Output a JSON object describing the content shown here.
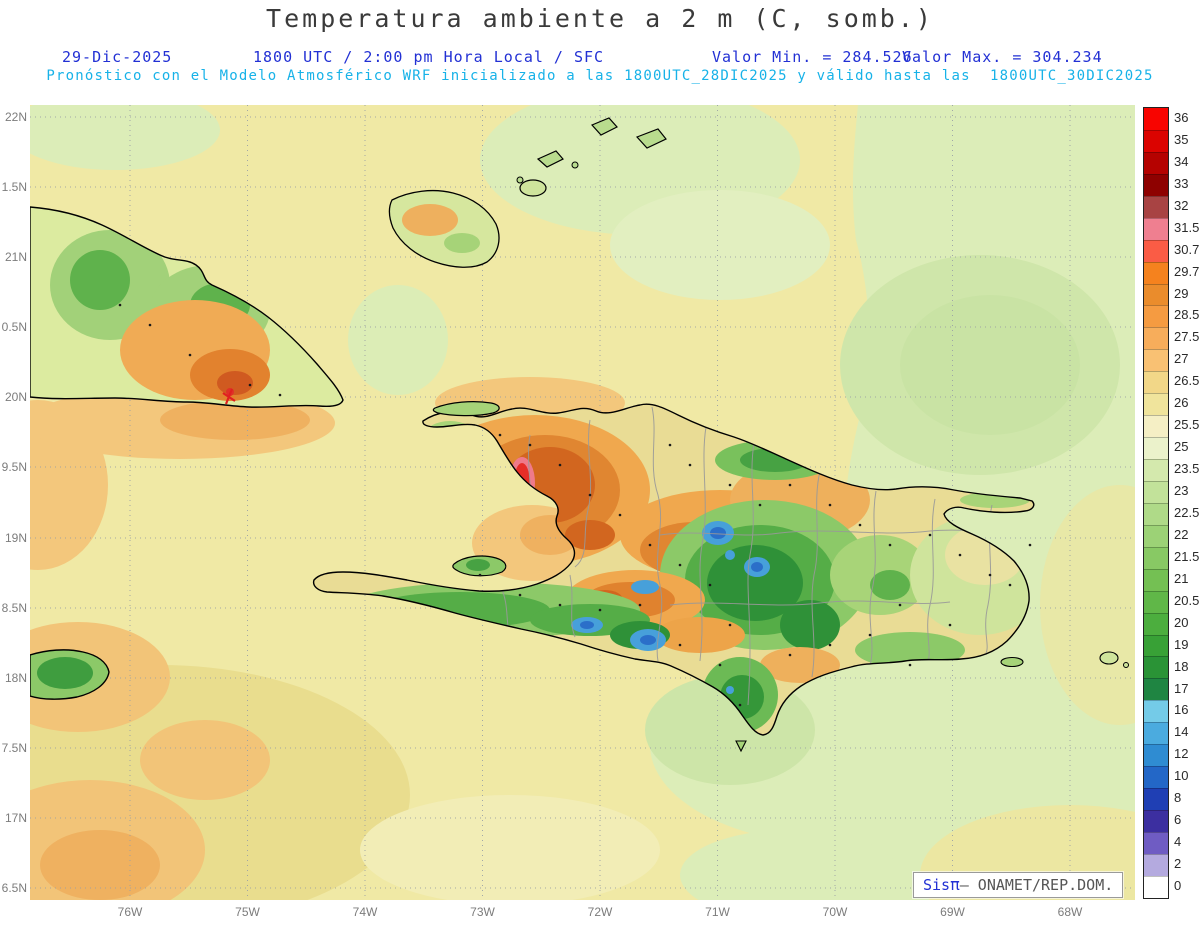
{
  "title": "Temperatura ambiente a 2 m (C, somb.)",
  "header": {
    "date": "29-Dic-2025",
    "time_line": "1800 UTC / 2:00 pm Hora Local / SFC",
    "min_label": "Valor Min. = 284.526",
    "max_label": "Valor Max. = 304.234",
    "model_line": "Pronóstico con el Modelo Atmosférico WRF inicializado a las 1800UTC_28DIC2025 y válido hasta las  1800UTC_30DIC2025"
  },
  "axes": {
    "y_ticks": [
      "22N",
      "1.5N",
      "21N",
      "0.5N",
      "20N",
      "9.5N",
      "19N",
      "8.5N",
      "18N",
      "7.5N",
      "17N",
      "6.5N"
    ],
    "x_ticks": [
      "76W",
      "75W",
      "74W",
      "73W",
      "72W",
      "71W",
      "70W",
      "69W",
      "68W"
    ]
  },
  "colorbar": {
    "labels": [
      "36",
      "35",
      "34",
      "33",
      "32",
      "31.5",
      "30.7",
      "29.7",
      "29",
      "28.5",
      "27.5",
      "27",
      "26.5",
      "26",
      "25.5",
      "25",
      "23.5",
      "23",
      "22.5",
      "22",
      "21.5",
      "21",
      "20.5",
      "20",
      "19",
      "18",
      "17",
      "16",
      "14",
      "12",
      "10",
      "8",
      "6",
      "4",
      "2",
      "0"
    ],
    "colors": [
      "#f80400",
      "#db0300",
      "#b50200",
      "#8e0100",
      "#a84343",
      "#ef7f90",
      "#fa5c45",
      "#f5821e",
      "#ea8c2c",
      "#f59b41",
      "#f7ad5b",
      "#f9c173",
      "#f2d788",
      "#f0e49c",
      "#f5efc5",
      "#ebf2cb",
      "#d4e9ad",
      "#c2e29a",
      "#afda88",
      "#9cd276",
      "#88c964",
      "#74c053",
      "#60b748",
      "#4cae3e",
      "#38a136",
      "#2a9336",
      "#1f8542",
      "#74cbe8",
      "#4babdf",
      "#2f8cd2",
      "#2367c7",
      "#1f3fb4",
      "#3c2fa0",
      "#6f5cc3",
      "#b4aadf",
      "#ffffff"
    ]
  },
  "watermark": {
    "sis": "Sis",
    "pi": "π",
    "org": "– ONAMET/REP.DOM."
  }
}
